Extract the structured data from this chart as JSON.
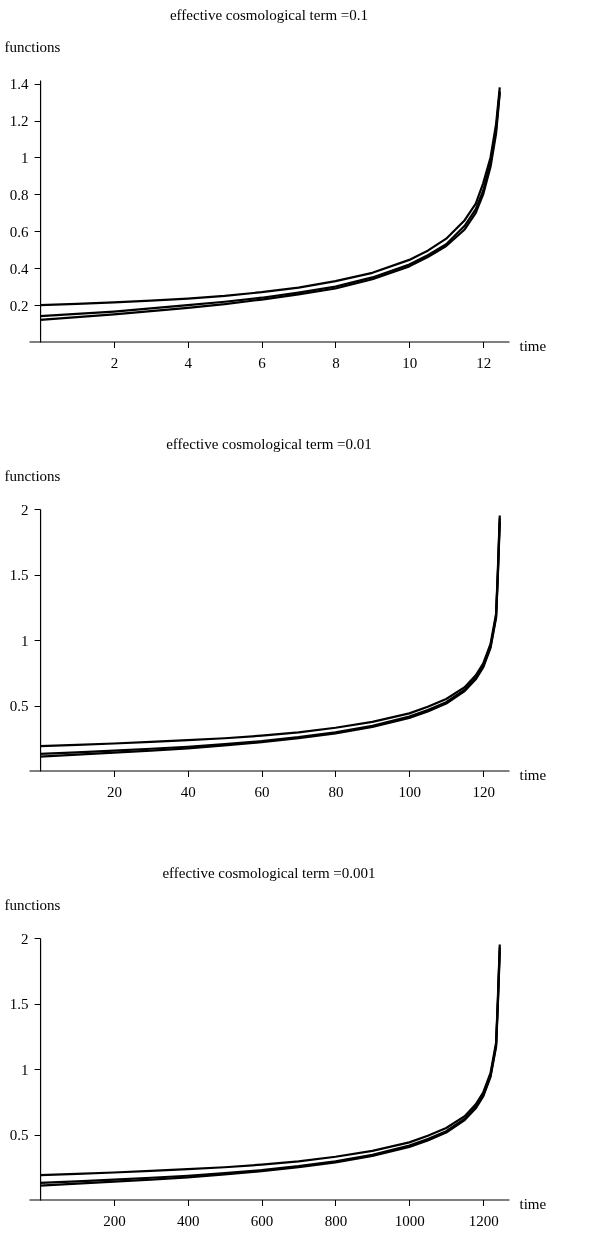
{
  "chart_data": [
    {
      "type": "line",
      "title": "effective cosmological term =0.1",
      "xlabel": "time",
      "ylabel": "functions",
      "x": [
        0,
        1,
        2,
        3,
        4,
        5,
        6,
        7,
        8,
        9,
        10,
        10.5,
        11,
        11.5,
        11.8,
        12,
        12.2,
        12.35,
        12.45
      ],
      "xlim": [
        -0.3,
        12.7
      ],
      "ylim": [
        0,
        1.42
      ],
      "xticks": [
        2,
        4,
        6,
        8,
        10,
        12
      ],
      "yticks": [
        0.2,
        0.4,
        0.6,
        0.8,
        1,
        1.2,
        1.4
      ],
      "grid": false,
      "legend": false,
      "line_style": "solid",
      "series": [
        {
          "color": "#000000",
          "values": [
            0.2,
            0.207,
            0.215,
            0.224,
            0.235,
            0.25,
            0.27,
            0.295,
            0.33,
            0.375,
            0.445,
            0.495,
            0.56,
            0.66,
            0.75,
            0.86,
            1.0,
            1.18,
            1.38
          ]
        },
        {
          "color": "#000000",
          "values": [
            0.14,
            0.152,
            0.165,
            0.182,
            0.2,
            0.218,
            0.24,
            0.268,
            0.3,
            0.35,
            0.42,
            0.47,
            0.53,
            0.63,
            0.72,
            0.82,
            0.97,
            1.15,
            1.36
          ]
        },
        {
          "color": "#000000",
          "values": [
            0.12,
            0.135,
            0.15,
            0.167,
            0.185,
            0.205,
            0.23,
            0.258,
            0.29,
            0.34,
            0.41,
            0.46,
            0.52,
            0.61,
            0.7,
            0.8,
            0.95,
            1.13,
            1.35
          ]
        }
      ]
    },
    {
      "type": "line",
      "title": "effective cosmological term =0.01",
      "xlabel": "time",
      "ylabel": "functions",
      "x": [
        0,
        10,
        20,
        30,
        40,
        50,
        60,
        70,
        80,
        90,
        100,
        105,
        110,
        115,
        118,
        120,
        122,
        123.5,
        124,
        124.5
      ],
      "xlim": [
        -3,
        127
      ],
      "ylim": [
        0,
        2
      ],
      "xticks": [
        20,
        40,
        60,
        80,
        100,
        120
      ],
      "yticks": [
        0.5,
        1,
        1.5,
        2
      ],
      "grid": false,
      "legend": false,
      "line_style": "solid",
      "series": [
        {
          "color": "#000000",
          "values": [
            0.19,
            0.2,
            0.21,
            0.222,
            0.235,
            0.25,
            0.27,
            0.295,
            0.33,
            0.375,
            0.44,
            0.49,
            0.55,
            0.64,
            0.73,
            0.82,
            0.97,
            1.2,
            1.55,
            1.95
          ]
        },
        {
          "color": "#000000",
          "values": [
            0.13,
            0.142,
            0.155,
            0.17,
            0.185,
            0.205,
            0.228,
            0.258,
            0.295,
            0.345,
            0.415,
            0.465,
            0.525,
            0.62,
            0.71,
            0.8,
            0.95,
            1.18,
            1.52,
            1.93
          ]
        },
        {
          "color": "#000000",
          "values": [
            0.11,
            0.125,
            0.14,
            0.156,
            0.173,
            0.195,
            0.22,
            0.25,
            0.287,
            0.337,
            0.405,
            0.455,
            0.515,
            0.61,
            0.7,
            0.79,
            0.94,
            1.17,
            1.5,
            1.9
          ]
        }
      ]
    },
    {
      "type": "line",
      "title": "effective cosmological term =0.001",
      "xlabel": "time",
      "ylabel": "functions",
      "x": [
        0,
        100,
        200,
        300,
        400,
        500,
        600,
        700,
        800,
        900,
        1000,
        1050,
        1100,
        1150,
        1180,
        1200,
        1220,
        1235,
        1240,
        1245
      ],
      "xlim": [
        -30,
        1270
      ],
      "ylim": [
        0,
        2
      ],
      "xticks": [
        200,
        400,
        600,
        800,
        1000,
        1200
      ],
      "yticks": [
        0.5,
        1,
        1.5,
        2
      ],
      "grid": false,
      "legend": false,
      "line_style": "solid",
      "series": [
        {
          "color": "#000000",
          "values": [
            0.19,
            0.2,
            0.21,
            0.222,
            0.235,
            0.25,
            0.27,
            0.295,
            0.33,
            0.375,
            0.44,
            0.49,
            0.55,
            0.64,
            0.73,
            0.82,
            0.97,
            1.2,
            1.55,
            1.95
          ]
        },
        {
          "color": "#000000",
          "values": [
            0.13,
            0.142,
            0.155,
            0.17,
            0.185,
            0.205,
            0.228,
            0.258,
            0.295,
            0.345,
            0.415,
            0.465,
            0.525,
            0.62,
            0.71,
            0.8,
            0.95,
            1.18,
            1.52,
            1.93
          ]
        },
        {
          "color": "#000000",
          "values": [
            0.11,
            0.125,
            0.14,
            0.156,
            0.173,
            0.195,
            0.22,
            0.25,
            0.287,
            0.337,
            0.405,
            0.455,
            0.515,
            0.61,
            0.7,
            0.79,
            0.94,
            1.17,
            1.5,
            1.9
          ]
        }
      ]
    }
  ]
}
